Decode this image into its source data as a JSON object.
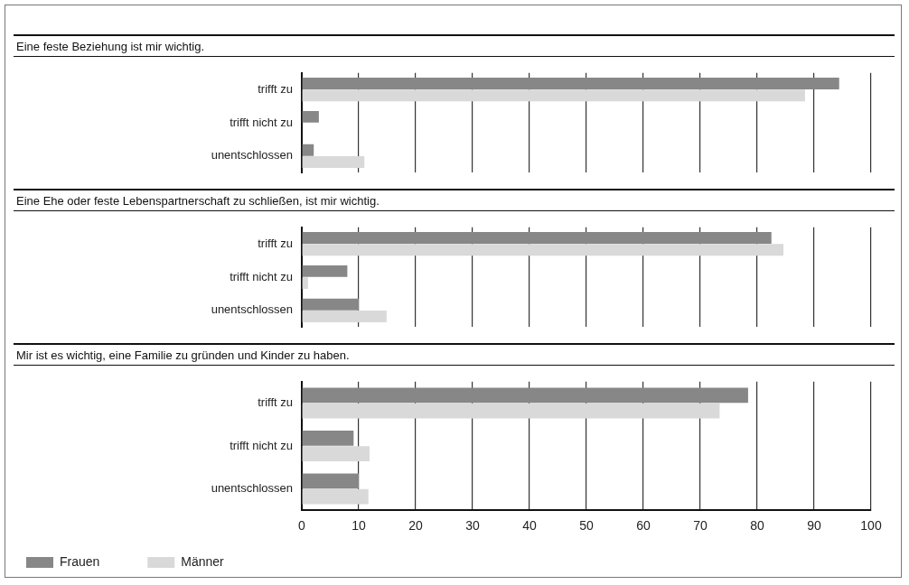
{
  "chart_data": [
    {
      "type": "bar",
      "orientation": "horizontal",
      "title": "Eine feste Beziehung ist mir wichtig.",
      "categories": [
        "trifft zu",
        "trifft nicht zu",
        "unentschlossen"
      ],
      "series": [
        {
          "color": "#878787",
          "values": [
            94.4,
            3.0,
            2.1
          ]
        },
        {
          "color": "#d9d9d9",
          "values": [
            88.4,
            0,
            11.0
          ]
        }
      ],
      "xlim": [
        0,
        100
      ],
      "xticks": [
        0,
        10,
        20,
        30,
        40,
        50,
        60,
        70,
        80,
        90,
        100
      ],
      "grid": "x",
      "tick_labels": "y",
      "legend": false
    },
    {
      "type": "bar",
      "orientation": "horizontal",
      "title": "Eine Ehe oder feste Lebenspartnerschaft zu schließen, ist mir wichtig.",
      "categories": [
        "trifft zu",
        "trifft nicht zu",
        "unentschlossen"
      ],
      "series": [
        {
          "color": "#878787",
          "values": [
            82.5,
            8.0,
            10.0
          ]
        },
        {
          "color": "#d9d9d9",
          "values": [
            84.6,
            1.1,
            14.9
          ]
        }
      ],
      "xlim": [
        0,
        100
      ],
      "xticks": [
        0,
        10,
        20,
        30,
        40,
        50,
        60,
        70,
        80,
        90,
        100
      ],
      "grid": "x",
      "tick_labels": "y",
      "legend": false
    },
    {
      "type": "bar",
      "orientation": "horizontal",
      "title": "Mir ist es wichtig, eine Familie zu gründen und Kinder zu haben.",
      "categories": [
        "trifft zu",
        "trifft nicht zu",
        "unentschlossen"
      ],
      "series": [
        {
          "name": "Frauen",
          "color": "#878787",
          "values": [
            78.4,
            9.1,
            10.0
          ]
        },
        {
          "name": "Männer",
          "color": "#d9d9d9",
          "values": [
            73.4,
            11.9,
            11.7
          ]
        }
      ],
      "xlim": [
        0,
        100
      ],
      "xticks": [
        0,
        10,
        20,
        30,
        40,
        50,
        60,
        70,
        80,
        90,
        100
      ],
      "grid": "x",
      "legend": "bottom left"
    }
  ]
}
